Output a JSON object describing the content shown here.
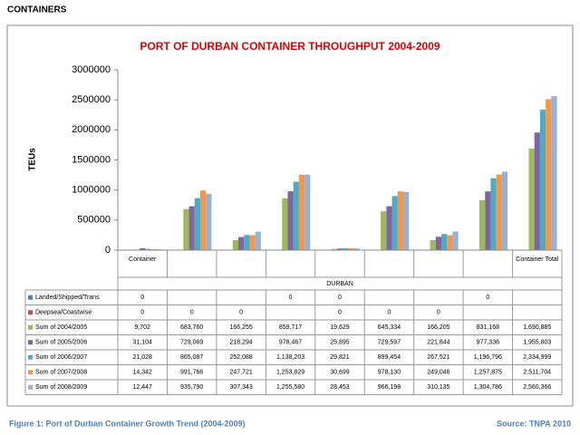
{
  "header": "CONTAINERS",
  "chart_data": {
    "type": "bar",
    "title": "PORT OF DURBAN CONTAINER THROUGHPUT 2004-2009",
    "ylabel": "TEUs",
    "group_label": "DURBAN",
    "categories": [
      "Container",
      null,
      null,
      null,
      null,
      null,
      null,
      null,
      "Container Total"
    ],
    "ylim": [
      0,
      3000000
    ],
    "yticks": [
      0,
      500000,
      1000000,
      1500000,
      2000000,
      2500000,
      3000000
    ],
    "grid": false,
    "series": [
      {
        "name": "Landed/Shipped/Trans",
        "color": "#4f81bd",
        "values": [
          0,
          null,
          null,
          0,
          0,
          null,
          null,
          0,
          null
        ]
      },
      {
        "name": "Deepsea/Coastwise",
        "color": "#c0504d",
        "values": [
          0,
          0,
          0,
          null,
          0,
          0,
          0,
          null,
          null
        ]
      },
      {
        "name": "Sum of 2004/2005",
        "color": "#9bbb59",
        "values": [
          9702,
          683760,
          166255,
          859717,
          19629,
          645334,
          166205,
          831168,
          1690885
        ],
        "value_labels": [
          "9,702",
          "683,760",
          "166,255",
          "859,717",
          "19,629",
          "645,334",
          "166,205",
          "831,168",
          "1,690,885"
        ]
      },
      {
        "name": "Sum of 2005/2006",
        "color": "#8064a2",
        "values": [
          31104,
          729069,
          218294,
          978467,
          25895,
          729597,
          221844,
          977336,
          1955803
        ],
        "value_labels": [
          "31,104",
          "729,069",
          "218,294",
          "978,467",
          "25,895",
          "729,597",
          "221,844",
          "977,336",
          "1,955,803"
        ]
      },
      {
        "name": "Sum of 2006/2007",
        "color": "#4bacc6",
        "values": [
          21028,
          865087,
          252088,
          1138203,
          29821,
          899454,
          267521,
          1196796,
          2334999
        ],
        "value_labels": [
          "21,028",
          "865,087",
          "252,088",
          "1,138,203",
          "29,821",
          "899,454",
          "267,521",
          "1,196,796",
          "2,334,999"
        ]
      },
      {
        "name": "Sum of 2007/2008",
        "color": "#f79646",
        "values": [
          14342,
          991766,
          247721,
          1253829,
          30699,
          978130,
          249046,
          1257875,
          2511704
        ],
        "value_labels": [
          "14,342",
          "991,766",
          "247,721",
          "1,253,829",
          "30,699",
          "978,130",
          "249,046",
          "1,257,875",
          "2,511,704"
        ]
      },
      {
        "name": "Sum of 2008/2009",
        "color": "#95b3d7",
        "values": [
          12447,
          935790,
          307343,
          1255580,
          28453,
          966198,
          310135,
          1304786,
          2560366
        ],
        "value_labels": [
          "12,447",
          "935,790",
          "307,343",
          "1,255,580",
          "28,453",
          "966,198",
          "310,135",
          "1,304,786",
          "2,560,366"
        ]
      }
    ]
  },
  "footer": {
    "caption": "Figure 1: Port of Durban Container  Growth Trend (2004-2009)",
    "source": "Source: TNPA 2010"
  }
}
